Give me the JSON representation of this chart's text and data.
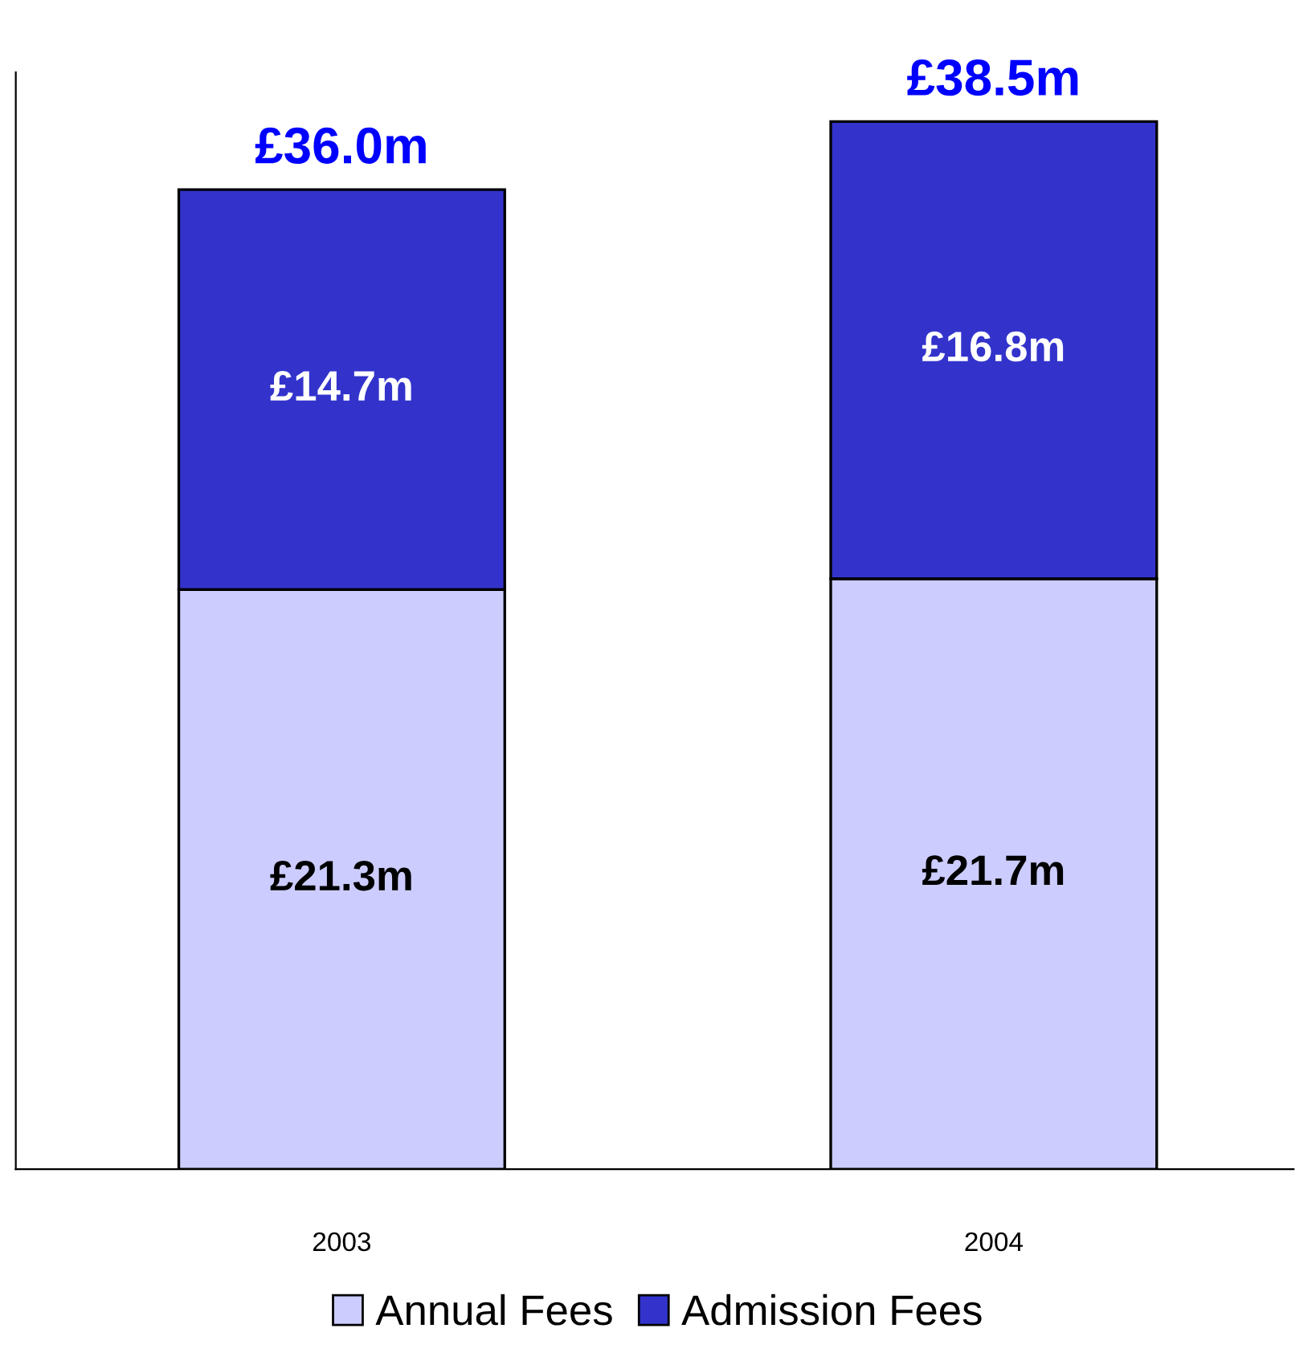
{
  "chart_data": {
    "type": "bar",
    "stacked": true,
    "categories": [
      "2003",
      "2004"
    ],
    "series": [
      {
        "name": "Annual Fees",
        "color": "#ccccff",
        "values": [
          21.3,
          21.7
        ],
        "value_labels": [
          "£21.3m",
          "£21.7m"
        ]
      },
      {
        "name": "Admission Fees",
        "color": "#3333cc",
        "values": [
          14.7,
          16.8
        ],
        "value_labels": [
          "£14.7m",
          "£16.8m"
        ]
      }
    ],
    "totals": [
      "£36.0m",
      "£38.5m"
    ],
    "legend": "bottom",
    "tick_labels": "x",
    "grid": false
  }
}
